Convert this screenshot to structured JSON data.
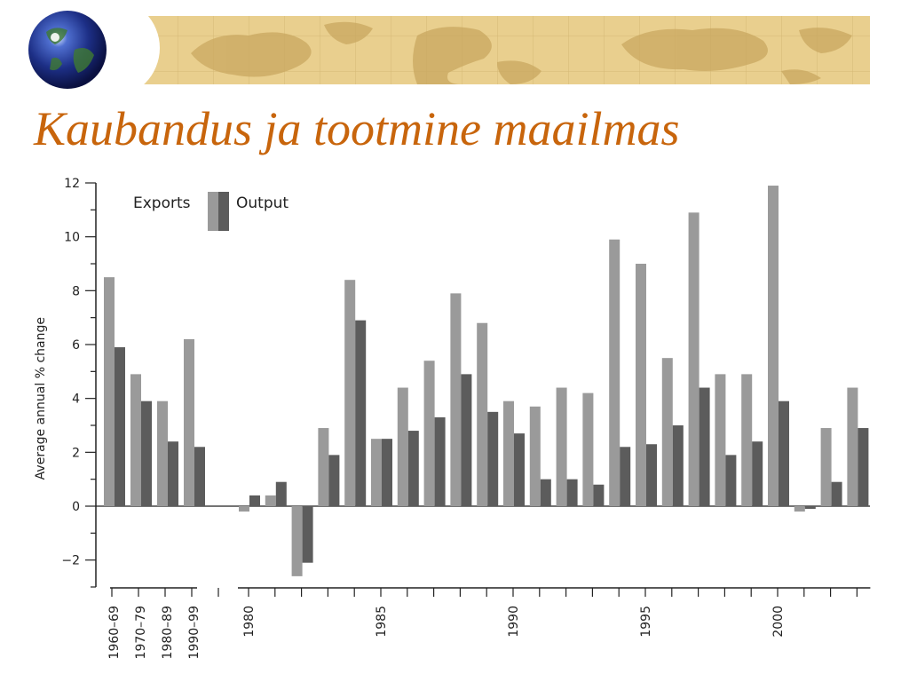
{
  "slide": {
    "title": "Kaubandus ja tootmine maailmas"
  },
  "colors": {
    "title": "#c8650c",
    "banner_background": "#e9cf8e",
    "banner_map": "#c9a860",
    "exports": "#9a9a9a",
    "output": "#5c5c5c"
  },
  "chart_data": {
    "type": "bar",
    "ylabel": "Average annual % change",
    "xlabel": "",
    "ylim": [
      -3,
      12
    ],
    "yticks": [
      -2,
      0,
      2,
      4,
      6,
      8,
      10,
      12
    ],
    "ytick_labels": [
      "−2",
      "0",
      "2",
      "4",
      "6",
      "8",
      "10",
      "12"
    ],
    "legend": [
      "Exports",
      "Output"
    ],
    "legend_position": "top-left",
    "decade_categories": [
      "1960–69",
      "1970–79",
      "1980–89",
      "1990–99"
    ],
    "decade_series": [
      {
        "name": "Exports",
        "values": [
          8.5,
          4.9,
          3.9,
          6.2
        ]
      },
      {
        "name": "Output",
        "values": [
          5.9,
          3.9,
          2.4,
          2.2
        ]
      }
    ],
    "year_categories": [
      1980,
      1981,
      1982,
      1983,
      1984,
      1985,
      1986,
      1987,
      1988,
      1989,
      1990,
      1991,
      1992,
      1993,
      1994,
      1995,
      1996,
      1997,
      1998,
      1999,
      2000,
      2001,
      2002,
      2003
    ],
    "year_series": [
      {
        "name": "Exports",
        "values": [
          -0.2,
          0.4,
          -2.6,
          2.9,
          8.4,
          2.5,
          4.4,
          5.4,
          7.9,
          6.8,
          3.9,
          3.7,
          4.4,
          4.2,
          9.9,
          9.0,
          5.5,
          10.9,
          4.9,
          4.9,
          11.9,
          -0.2,
          2.9,
          4.4
        ]
      },
      {
        "name": "Output",
        "values": [
          0.4,
          0.9,
          -2.1,
          1.9,
          6.9,
          2.5,
          2.8,
          3.3,
          4.9,
          3.5,
          2.7,
          1.0,
          1.0,
          0.8,
          2.2,
          2.3,
          3.0,
          4.4,
          1.9,
          2.4,
          3.9,
          -0.1,
          0.9,
          2.9
        ]
      }
    ],
    "year_axis_labels": [
      {
        "year": 1980,
        "label": "1980"
      },
      {
        "year": 1985,
        "label": "1985"
      },
      {
        "year": 1990,
        "label": "1990"
      },
      {
        "year": 1995,
        "label": "1995"
      },
      {
        "year": 2000,
        "label": "2000"
      }
    ]
  }
}
